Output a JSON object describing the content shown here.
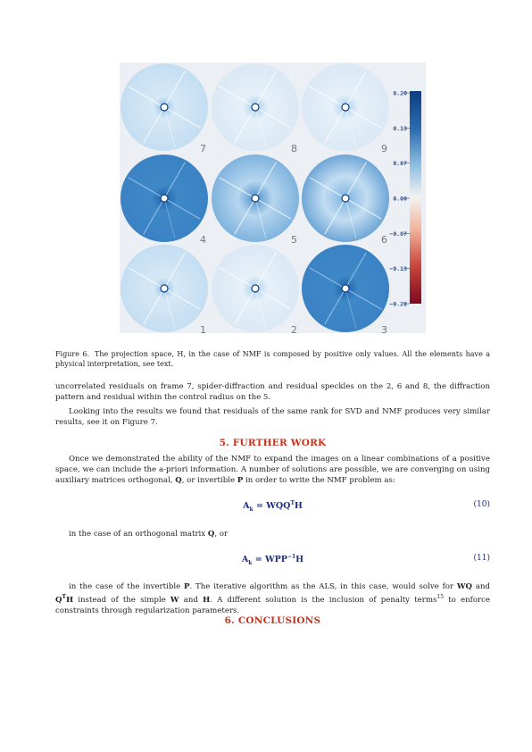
{
  "figure": {
    "panel_numbers": [
      "7",
      "8",
      "9",
      "4",
      "5",
      "6",
      "1",
      "2",
      "3"
    ],
    "colorbar_ticks": [
      "0.20",
      "0.13",
      "0.07",
      "0.00",
      "−0.07",
      "−0.13",
      "−0.20"
    ],
    "colors": {
      "max": "#0d3f82",
      "mid": "#f3f3ef",
      "min": "#7c0a20"
    }
  },
  "caption": {
    "label": "Figure 6.",
    "text": "The projection space, H, in the case of NMF is composed by positive only values. All the elements have a physical interpretation, see text."
  },
  "para1": "uncorrelated residuals on frame 7, spider-diffraction and residual speckles on the 2, 6 and 8, the diffraction pattern and residual within the control radius on the 5.",
  "para2": "Looking into the results we found that residuals of the same rank for SVD and NMF produces very similar results, see it on Figure 7.",
  "section5": "5. FURTHER WORK",
  "para3": {
    "a": "Once we demonstrated the ability of the NMF to expand the images on a linear combinations of a positive space, we can include the a-priori information. A number of solutions are possible, we are converging on using auxiliary matrices orthogonal, ",
    "Q": "Q",
    "b": ", or invertible ",
    "P": "P",
    "c": " in order to write the NMF problem as:"
  },
  "eq10": {
    "lhs": "A",
    "sub": "k",
    "rhs": " = WQQ",
    "sup": "T",
    "tail": "H",
    "number": "(10)"
  },
  "para4": {
    "a": "in the case of an orthogonal matrix ",
    "Q": "Q",
    "b": ", or"
  },
  "eq11": {
    "lhs": "A",
    "sub": "k",
    "rhs": " = WPP",
    "sup": "−1",
    "tail": "H",
    "number": "(11)"
  },
  "para5": {
    "a": "in the case of the invertible ",
    "P": "P",
    "b": ". The iterative algorithm as the ALS, in this case, would solve for ",
    "WQ": "WQ",
    "and": " and ",
    "QT": "Q",
    "T": "T",
    "H": "H",
    "c": " instead of the simple ",
    "W": "W",
    "and2": " and ",
    "H2": "H",
    "d": ". A different solution is the inclusion of penalty terms",
    "ref": "15",
    "e": " to enforce constraints through regularization parameters."
  },
  "section6": "6. CONCLUSIONS"
}
